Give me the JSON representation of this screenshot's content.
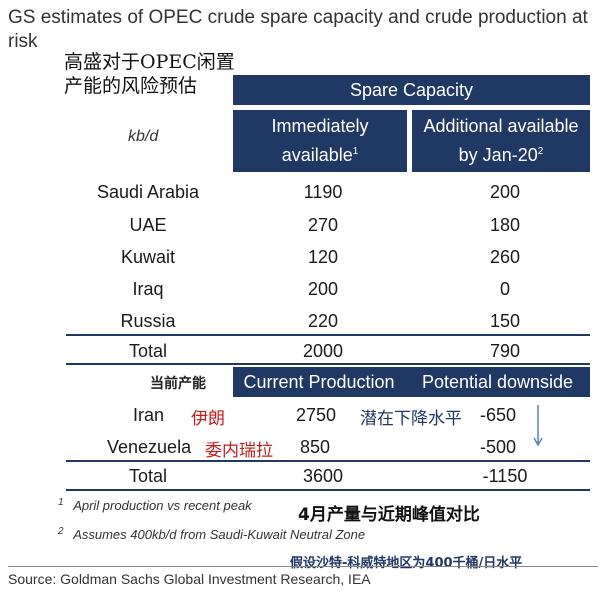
{
  "title": "GS estimates of OPEC crude spare capacity and crude production at risk",
  "zh_title_line1": "高盛对于OPEC闲置",
  "zh_title_line2": "产能的风险预估",
  "unit_label": "kb/d",
  "spare": {
    "header": "Spare Capacity",
    "col_immediate_line1": "Immediately",
    "col_immediate_line2": "available",
    "col_immediate_sup": "1",
    "col_additional_line1": "Additional available",
    "col_additional_line2": "by Jan-20",
    "col_additional_sup": "2",
    "rows": [
      {
        "country": "Saudi Arabia",
        "immediate": "1190",
        "additional": "200"
      },
      {
        "country": "UAE",
        "immediate": "270",
        "additional": "180"
      },
      {
        "country": "Kuwait",
        "immediate": "120",
        "additional": "260"
      },
      {
        "country": "Iraq",
        "immediate": "200",
        "additional": "0"
      },
      {
        "country": "Russia",
        "immediate": "220",
        "additional": "150"
      }
    ],
    "total": {
      "label": "Total",
      "immediate": "2000",
      "additional": "790"
    }
  },
  "production": {
    "zh_label": "当前产能",
    "col_current": "Current Production",
    "col_downside": "Potential downside",
    "zh_downside": "潜在下降水平",
    "rows": [
      {
        "country": "Iran",
        "zh": "伊朗",
        "current": "2750",
        "downside": "-650"
      },
      {
        "country": "Venezuela",
        "zh": "委内瑞拉",
        "current": "850",
        "downside": "-500"
      }
    ],
    "total": {
      "label": "Total",
      "current": "3600",
      "downside": "-1150"
    }
  },
  "footnotes": {
    "n1": "1",
    "t1": "April production vs recent peak",
    "zh1": "4月产量与近期峰值对比",
    "n2": "2",
    "t2": "Assumes 400kb/d from Saudi-Kuwait Neutral Zone",
    "zh2": "假设沙特-科威特地区为400千桶/日水平"
  },
  "source": "Source: Goldman Sachs Global Investment Research, IEA",
  "colors": {
    "header_navy": "#1f3864",
    "zh_red": "#cc1a1a"
  }
}
